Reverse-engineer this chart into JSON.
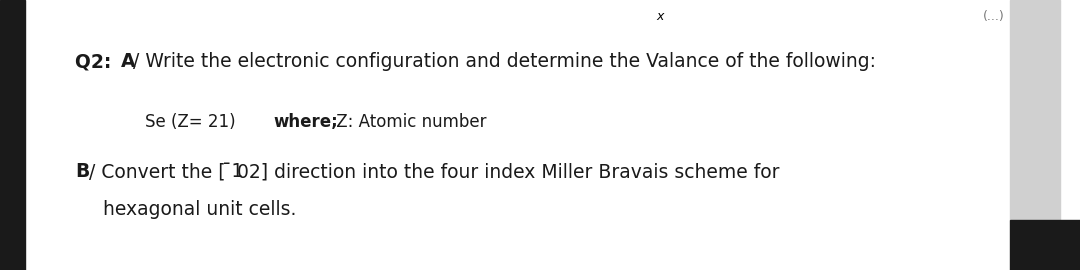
{
  "bg_color": "#ffffff",
  "left_bar_color": "#1a1a1a",
  "right_scroll_color": "#d0d0d0",
  "right_corner_color": "#1a1a1a",
  "top_x": "x",
  "top_right": "(...)",
  "q2_bold": "Q2: ",
  "q2_a_bold": "A",
  "q2_rest": "/ Write the electronic configuration and determine the Valance of the following:",
  "se_text": "Se (Z= 21)",
  "where_bold": "where;",
  "where_rest": " Z: Atomic number",
  "b_bold": "B",
  "b_rest": "/ Convert the [",
  "bracket_overbar": "¯1",
  "bracket_rest": "02] direction into the four index Miller Bravais scheme for",
  "line4": "hexagonal unit cells.",
  "font_size": 13.5,
  "font_size_sub": 12.0
}
